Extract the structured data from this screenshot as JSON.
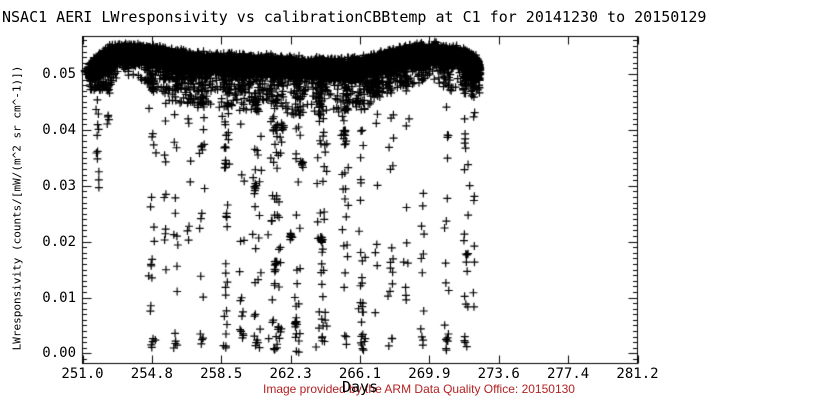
{
  "title": "NSAC1 AERI LWresponsivity vs calibrationCBBtemp at C1 for 20141230 to 20150129",
  "footer": {
    "text": "Image provided by the ARM Data Quality Office: 20150130",
    "color": "#b22222"
  },
  "chart_data": {
    "type": "scatter",
    "title": "NSAC1 AERI LWresponsivity vs calibrationCBBtemp at C1 for 20141230 to 20150129",
    "xlabel": "Days",
    "ylabel": "LWresponsivity (counts/[mW/(m^2 sr cm^-1)])",
    "xlim": [
      251.0,
      281.2
    ],
    "ylim": [
      -0.0018,
      0.0567
    ],
    "x_tick_positions": [
      251.0,
      254.775,
      258.55,
      262.325,
      266.1,
      269.875,
      273.65,
      277.425,
      281.2
    ],
    "x_tick_labels": [
      "251.0",
      "254.8",
      "258.5",
      "262.3",
      "266.1",
      "269.9",
      "273.6",
      "277.4",
      "281.2"
    ],
    "y_tick_positions": [
      0.0,
      0.01,
      0.02,
      0.03,
      0.04,
      0.05
    ],
    "y_tick_labels": [
      "0.00",
      "0.01",
      "0.02",
      "0.03",
      "0.04",
      "0.05"
    ],
    "y_minor_interval": 0.001,
    "grid": false,
    "legend": null,
    "marker": "plus",
    "marker_size_px": 8,
    "marker_color": "#000000",
    "axis_color": "#000000",
    "seed": 13371,
    "series": {
      "calibration_band": {
        "n": 5600,
        "x_start": 251.35,
        "x_end": 272.65,
        "half_thickness": 0.0022,
        "center_profile": [
          [
            251.35,
            0.0504
          ],
          [
            251.8,
            0.0512
          ],
          [
            252.3,
            0.053
          ],
          [
            253.2,
            0.0534
          ],
          [
            254.8,
            0.0534
          ],
          [
            255.8,
            0.0526
          ],
          [
            257.0,
            0.0521
          ],
          [
            258.5,
            0.0518
          ],
          [
            260.0,
            0.0516
          ],
          [
            261.5,
            0.0514
          ],
          [
            262.5,
            0.0512
          ],
          [
            263.5,
            0.051
          ],
          [
            265.0,
            0.0509
          ],
          [
            266.0,
            0.0511
          ],
          [
            267.0,
            0.0517
          ],
          [
            268.0,
            0.0528
          ],
          [
            269.0,
            0.0534
          ],
          [
            270.3,
            0.0536
          ],
          [
            271.2,
            0.0531
          ],
          [
            272.0,
            0.0526
          ],
          [
            272.4,
            0.0516
          ],
          [
            272.65,
            0.0504
          ]
        ]
      },
      "under_band_fringe": {
        "n": 1400,
        "depth_profile": [
          [
            251.4,
            0.0018
          ],
          [
            252.3,
            0.0045
          ],
          [
            253.3,
            0.0028
          ],
          [
            254.2,
            0.003
          ],
          [
            255.0,
            0.0055
          ],
          [
            256.2,
            0.0062
          ],
          [
            257.3,
            0.0066
          ],
          [
            258.6,
            0.0066
          ],
          [
            260.0,
            0.0068
          ],
          [
            261.5,
            0.007
          ],
          [
            263.0,
            0.007
          ],
          [
            264.5,
            0.0068
          ],
          [
            265.6,
            0.0065
          ],
          [
            266.4,
            0.006
          ],
          [
            267.2,
            0.005
          ],
          [
            268.2,
            0.0042
          ],
          [
            269.2,
            0.0038
          ],
          [
            269.9,
            0.0024
          ],
          [
            270.7,
            0.0045
          ],
          [
            271.6,
            0.005
          ],
          [
            272.3,
            0.0045
          ],
          [
            272.65,
            0.0028
          ]
        ]
      },
      "dropout_streaks": [
        {
          "x": 251.8,
          "n": 14,
          "y_min": 0.029,
          "spread": 0.12
        },
        {
          "x": 252.4,
          "n": 7,
          "y_min": 0.04,
          "spread": 0.18
        },
        {
          "x": 254.8,
          "n": 24,
          "y_min": 0.0,
          "spread": 0.22
        },
        {
          "x": 255.5,
          "n": 10,
          "y_min": 0.012,
          "spread": 0.12
        },
        {
          "x": 256.1,
          "n": 16,
          "y_min": 0.0,
          "spread": 0.15
        },
        {
          "x": 256.8,
          "n": 8,
          "y_min": 0.02,
          "spread": 0.12
        },
        {
          "x": 257.5,
          "n": 18,
          "y_min": 0.0,
          "spread": 0.22
        },
        {
          "x": 258.8,
          "n": 30,
          "y_min": 0.0,
          "spread": 0.25
        },
        {
          "x": 259.7,
          "n": 18,
          "y_min": 0.002,
          "spread": 0.22
        },
        {
          "x": 260.5,
          "n": 32,
          "y_min": 0.0,
          "spread": 0.28
        },
        {
          "x": 261.5,
          "n": 60,
          "y_min": 0.0,
          "spread": 0.45
        },
        {
          "x": 262.7,
          "n": 26,
          "y_min": 0.0,
          "spread": 0.25
        },
        {
          "x": 264.0,
          "n": 44,
          "y_min": 0.0,
          "spread": 0.35
        },
        {
          "x": 265.3,
          "n": 24,
          "y_min": 0.0,
          "spread": 0.25
        },
        {
          "x": 266.2,
          "n": 32,
          "y_min": 0.0,
          "spread": 0.22
        },
        {
          "x": 267.0,
          "n": 12,
          "y_min": 0.004,
          "spread": 0.15
        },
        {
          "x": 267.8,
          "n": 16,
          "y_min": 0.001,
          "spread": 0.2
        },
        {
          "x": 268.6,
          "n": 11,
          "y_min": 0.005,
          "spread": 0.18
        },
        {
          "x": 269.5,
          "n": 9,
          "y_min": 0.002,
          "spread": 0.12
        },
        {
          "x": 270.8,
          "n": 17,
          "y_min": 0.0,
          "spread": 0.18
        },
        {
          "x": 271.9,
          "n": 20,
          "y_min": 0.0,
          "spread": 0.2
        },
        {
          "x": 272.3,
          "n": 10,
          "y_min": 0.004,
          "spread": 0.1
        }
      ],
      "clusters": [
        [
          251.15,
          0.0505,
          12
        ],
        [
          261.9,
          0.0405,
          8
        ],
        [
          262.35,
          0.021,
          9
        ],
        [
          262.95,
          0.034,
          7
        ],
        [
          264.0,
          0.0205,
          8
        ],
        [
          265.25,
          0.0395,
          7
        ],
        [
          262.6,
          0.0055,
          8
        ],
        [
          261.5,
          0.016,
          7
        ],
        [
          260.4,
          0.0295,
          6
        ],
        [
          258.8,
          0.034,
          6
        ],
        [
          272.45,
          0.0498,
          14
        ]
      ]
    }
  }
}
